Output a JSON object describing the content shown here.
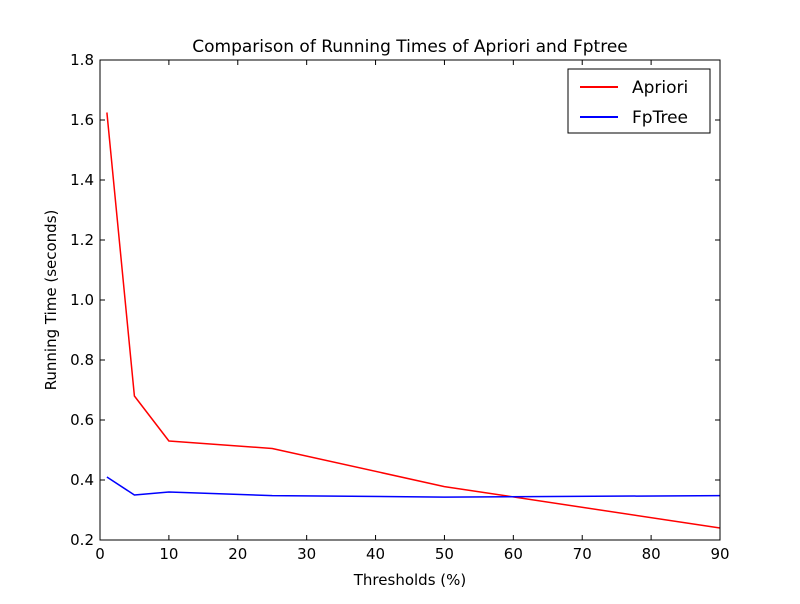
{
  "chart_data": {
    "type": "line",
    "title": "Comparison of Running Times of Apriori and Fptree",
    "xlabel": "Thresholds (%)",
    "ylabel": "Running Time (seconds)",
    "xlim": [
      0,
      90
    ],
    "ylim": [
      0.2,
      1.8
    ],
    "xticks": [
      0,
      10,
      20,
      30,
      40,
      50,
      60,
      70,
      80,
      90
    ],
    "yticks": [
      0.2,
      0.4,
      0.6,
      0.8,
      1.0,
      1.2,
      1.4,
      1.6,
      1.8
    ],
    "xtick_labels": [
      "0",
      "10",
      "20",
      "30",
      "40",
      "50",
      "60",
      "70",
      "80",
      "90"
    ],
    "ytick_labels": [
      "0.2",
      "0.4",
      "0.6",
      "0.8",
      "1.0",
      "1.2",
      "1.4",
      "1.6",
      "1.8"
    ],
    "grid": false,
    "legend_position": "top-right",
    "series": [
      {
        "name": "Apriori",
        "color": "#ff0000",
        "x": [
          1,
          5,
          10,
          25,
          50,
          90
        ],
        "y": [
          1.625,
          0.68,
          0.53,
          0.505,
          0.378,
          0.24
        ]
      },
      {
        "name": "FpTree",
        "color": "#0000ff",
        "x": [
          1,
          5,
          10,
          25,
          50,
          90
        ],
        "y": [
          0.41,
          0.35,
          0.36,
          0.348,
          0.343,
          0.348
        ]
      }
    ]
  }
}
